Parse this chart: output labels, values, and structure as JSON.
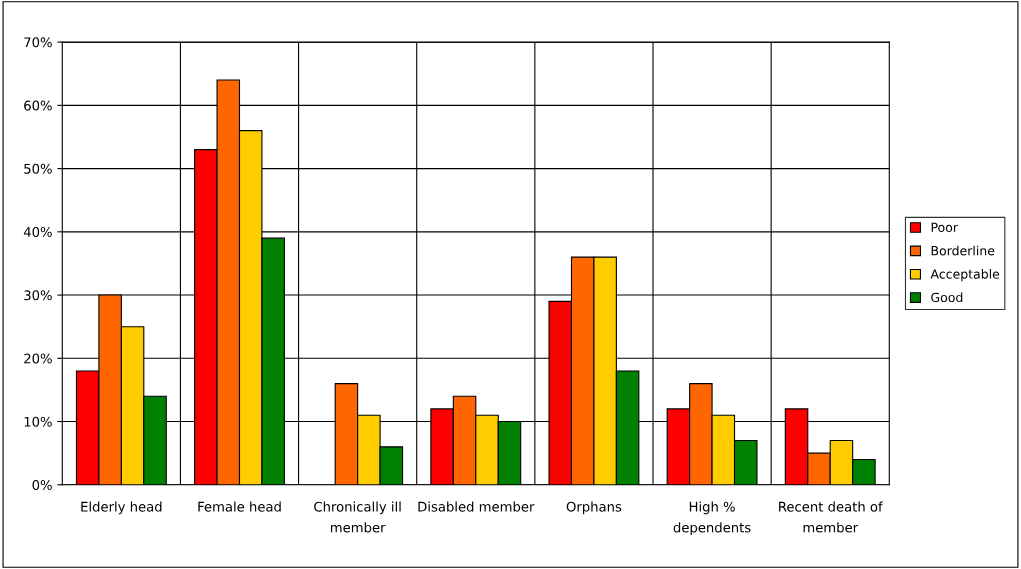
{
  "chart_data": {
    "type": "bar",
    "categories": [
      "Elderly head",
      "Female head",
      "Chronically ill member",
      "Disabled member",
      "Orphans",
      "High % dependents",
      "Recent death of member"
    ],
    "series": [
      {
        "name": "Poor",
        "color": "#ff0000",
        "values": [
          18,
          53,
          null,
          12,
          29,
          12,
          12
        ]
      },
      {
        "name": "Borderline",
        "color": "#ff6600",
        "values": [
          30,
          64,
          16,
          14,
          36,
          16,
          5
        ]
      },
      {
        "name": "Acceptable",
        "color": "#ffcc00",
        "values": [
          25,
          56,
          11,
          11,
          36,
          11,
          7
        ]
      },
      {
        "name": "Good",
        "color": "#008000",
        "values": [
          14,
          39,
          6,
          10,
          18,
          7,
          4
        ]
      }
    ],
    "ylim": [
      0,
      70
    ],
    "yticks": [
      {
        "value": 0,
        "label": "0%"
      },
      {
        "value": 10,
        "label": "10%"
      },
      {
        "value": 20,
        "label": "20%"
      },
      {
        "value": 30,
        "label": "30%"
      },
      {
        "value": 40,
        "label": "40%"
      },
      {
        "value": 50,
        "label": "50%"
      },
      {
        "value": 60,
        "label": "60%"
      },
      {
        "value": 70,
        "label": "70%"
      }
    ],
    "grid": true,
    "legend": "right"
  }
}
